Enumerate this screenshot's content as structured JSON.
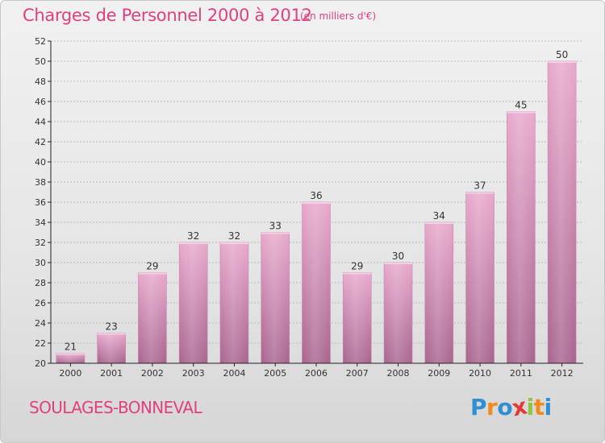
{
  "title": "Charges de Personnel 2000 à 2012",
  "subtitle": "(en milliers d'€)",
  "town": "SOULAGES-BONNEVAL",
  "logo": {
    "text": "Proxiti",
    "letters": [
      {
        "char": "P",
        "color": "#2f8fd3"
      },
      {
        "char": "r",
        "color": "#f08a1c"
      },
      {
        "char": "o",
        "color": "#2f8fd3"
      },
      {
        "char": "x",
        "color": "#e33b3b"
      },
      {
        "char": "i",
        "color": "#8cc63f"
      },
      {
        "char": "t",
        "color": "#f08a1c"
      },
      {
        "char": "i",
        "color": "#2f8fd3"
      }
    ]
  },
  "colors": {
    "accent": "#e0407e",
    "bar_light": "#e8a8cc",
    "bar_dark": "#a8648e",
    "axis": "#222222",
    "grid": "#bbbbbb"
  },
  "chart_data": {
    "type": "bar",
    "title": "Charges de Personnel 2000 à 2012",
    "subtitle": "(en milliers d'€)",
    "categories": [
      "2000",
      "2001",
      "2002",
      "2003",
      "2004",
      "2005",
      "2006",
      "2007",
      "2008",
      "2009",
      "2010",
      "2011",
      "2012"
    ],
    "values": [
      21,
      23,
      29,
      32,
      32,
      33,
      36,
      29,
      30,
      34,
      37,
      45,
      50
    ],
    "ylim": [
      20,
      52
    ],
    "yticks": [
      20,
      22,
      24,
      26,
      28,
      30,
      32,
      34,
      36,
      38,
      40,
      42,
      44,
      46,
      48,
      50,
      52
    ],
    "grid": true,
    "data_labels": true
  }
}
